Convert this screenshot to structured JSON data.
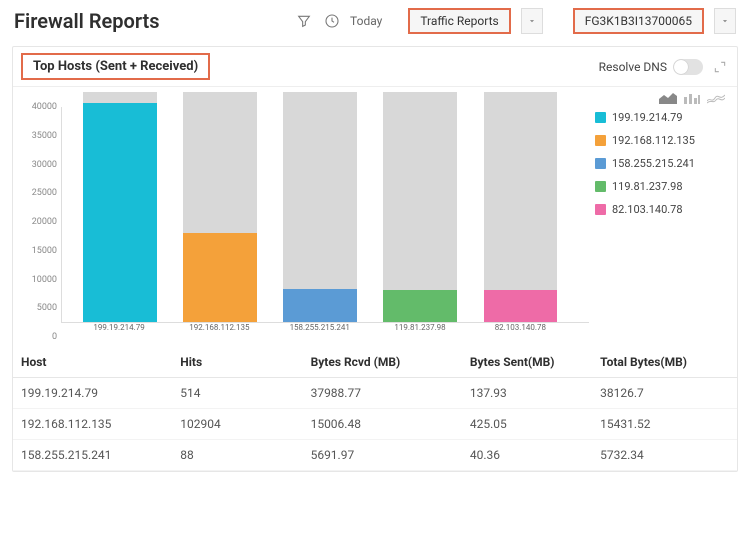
{
  "header": {
    "title": "Firewall Reports",
    "time_label": "Today",
    "report_select": "Traffic Reports",
    "device_select": "FG3K1B3I13700065"
  },
  "panel": {
    "title": "Top Hosts (Sent + Received)",
    "resolve_label": "Resolve DNS",
    "resolve_on": false
  },
  "chart": {
    "type": "bar",
    "ymax": 40000,
    "ytick_step": 5000,
    "y_ticks": [
      0,
      5000,
      10000,
      15000,
      20000,
      25000,
      30000,
      35000,
      40000
    ],
    "background_color": "#ffffff",
    "bar_bg_color": "#d8d8d8",
    "grid_color": "#eeeeee",
    "bar_width_pct": 14,
    "bar_positions_pct": [
      4,
      23,
      42,
      61,
      80
    ],
    "series": [
      {
        "label": "199.19.214.79",
        "value": 38126.7,
        "bg_value": 40000,
        "color": "#18bdd6"
      },
      {
        "label": "192.168.112.135",
        "value": 15431.52,
        "bg_value": 40000,
        "color": "#f4a13a"
      },
      {
        "label": "158.255.215.241",
        "value": 5732.34,
        "bg_value": 40000,
        "color": "#5b9bd5"
      },
      {
        "label": "119.81.237.98",
        "value": 5651,
        "bg_value": 40000,
        "color": "#63bb6a"
      },
      {
        "label": "82.103.140.78",
        "value": 5600,
        "bg_value": 40000,
        "color": "#ee6ba7"
      }
    ],
    "label_fontsize": 8,
    "tick_fontsize": 9
  },
  "table": {
    "columns": [
      "Host",
      "Hits",
      "Bytes Rcvd (MB)",
      "Bytes Sent(MB)",
      "Total Bytes(MB)"
    ],
    "rows": [
      [
        "199.19.214.79",
        "514",
        "37988.77",
        "137.93",
        "38126.7"
      ],
      [
        "192.168.112.135",
        "102904",
        "15006.48",
        "425.05",
        "15431.52"
      ],
      [
        "158.255.215.241",
        "88",
        "5691.97",
        "40.36",
        "5732.34"
      ]
    ],
    "col_widths_pct": [
      22,
      18,
      22,
      18,
      20
    ]
  },
  "colors": {
    "highlight_border": "#e26b4a",
    "text": "#333333",
    "muted": "#888888"
  }
}
